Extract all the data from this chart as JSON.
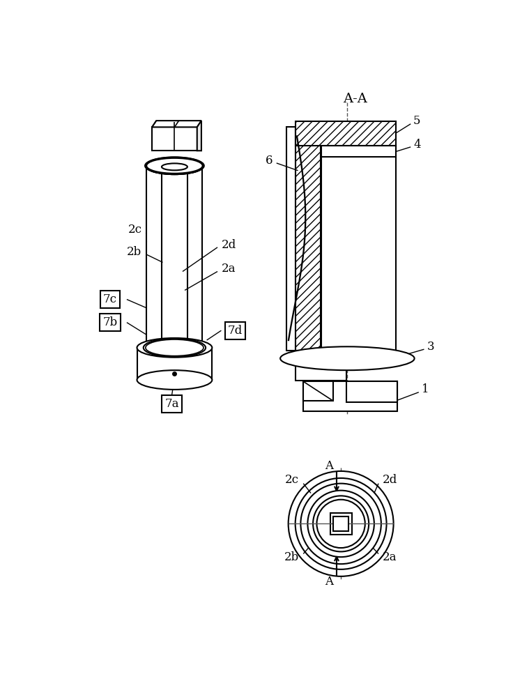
{
  "bg_color": "#ffffff",
  "line_color": "#000000",
  "label_fontsize": 12,
  "title_fontsize": 14,
  "fig_width": 7.26,
  "fig_height": 10.0,
  "labels": {
    "AA": "A-A",
    "1": "1",
    "3": "3",
    "4": "4",
    "5": "5",
    "6": "6",
    "2a": "2a",
    "2b": "2b",
    "2c": "2c",
    "2d": "2d",
    "7a": "7a",
    "7b": "7b",
    "7c": "7c",
    "7d": "7d",
    "A": "A"
  }
}
